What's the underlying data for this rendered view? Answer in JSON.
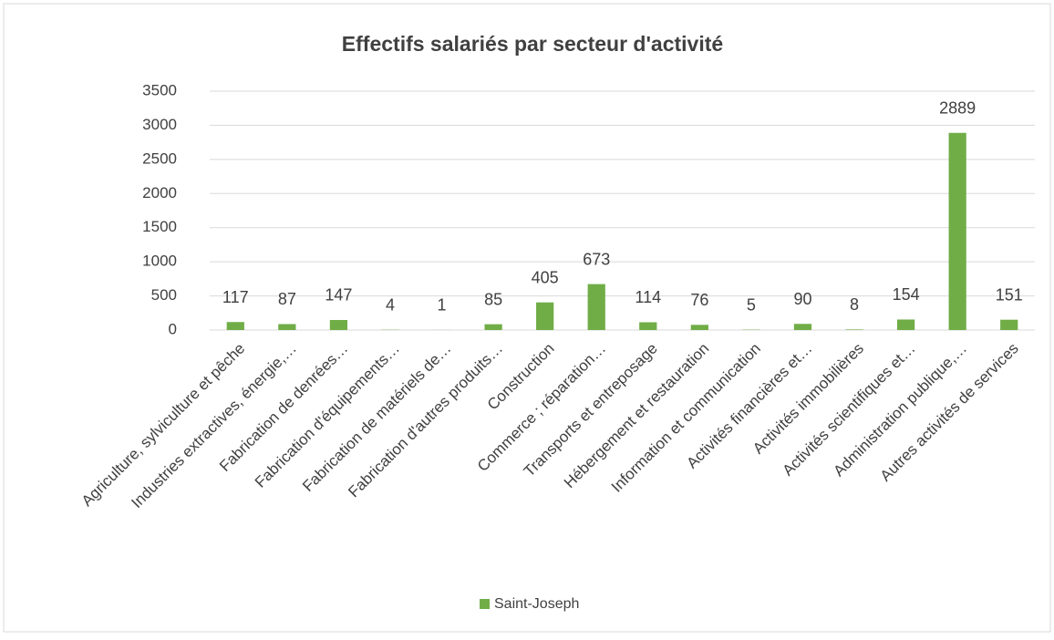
{
  "chart_data": {
    "type": "bar",
    "title": "Effectifs salariés par secteur d'activité",
    "categories": [
      "Agriculture, sylviculture et pêche",
      "Industries extractives, énergie,…",
      "Fabrication de denrées…",
      "Fabrication d'équipements…",
      "Fabrication de matériels de…",
      "Fabrication d'autres produits…",
      "Construction",
      "Commerce ; réparation…",
      "Transports et entreposage",
      "Hébergement et restauration",
      "Information et communication",
      "Activités financières et…",
      "Activités immobilières",
      "Activités scientifiques et…",
      "Administration publique,…",
      "Autres activités de services"
    ],
    "series": [
      {
        "name": "Saint-Joseph",
        "color": "#70ad47",
        "values": [
          117,
          87,
          147,
          4,
          1,
          85,
          405,
          673,
          114,
          76,
          5,
          90,
          8,
          154,
          2889,
          151
        ]
      }
    ],
    "ylim": [
      0,
      3500
    ],
    "yticks": [
      0,
      500,
      1000,
      1500,
      2000,
      2500,
      3000,
      3500
    ],
    "grid": true,
    "legend": "bottom"
  }
}
